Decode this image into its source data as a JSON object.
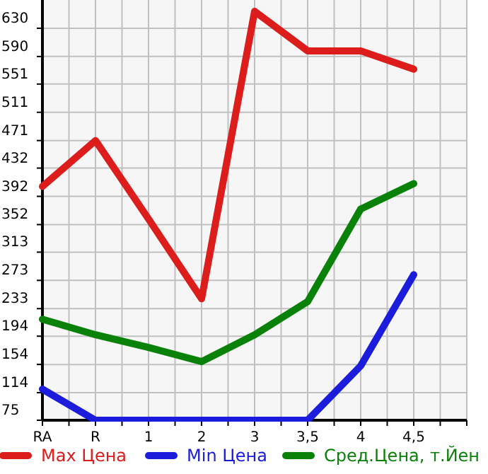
{
  "chart_data": {
    "type": "line",
    "categories": [
      "RA",
      "R",
      "1",
      "2",
      "3",
      "3,5",
      "4",
      "4,5"
    ],
    "series": [
      {
        "name": "Max Цена",
        "color": "#dd1c1c",
        "values": [
          406,
          471,
          360,
          247,
          654,
          598,
          598,
          572
        ]
      },
      {
        "name": "Min Цена",
        "color": "#1c1cdd",
        "values": [
          119,
          75,
          75,
          75,
          75,
          75,
          152,
          281
        ]
      },
      {
        "name": "Сред.Цена, т.Йен",
        "color": "#0a820a",
        "values": [
          218,
          196,
          178,
          158,
          196,
          243,
          374,
          410
        ]
      }
    ],
    "ylim": [
      75,
      670
    ],
    "yticks": [
      75,
      114,
      154,
      194,
      233,
      273,
      313,
      352,
      392,
      432,
      471,
      511,
      551,
      590,
      630
    ],
    "grid": true,
    "legend": "bottom",
    "marker": "none",
    "line_style": "solid"
  }
}
